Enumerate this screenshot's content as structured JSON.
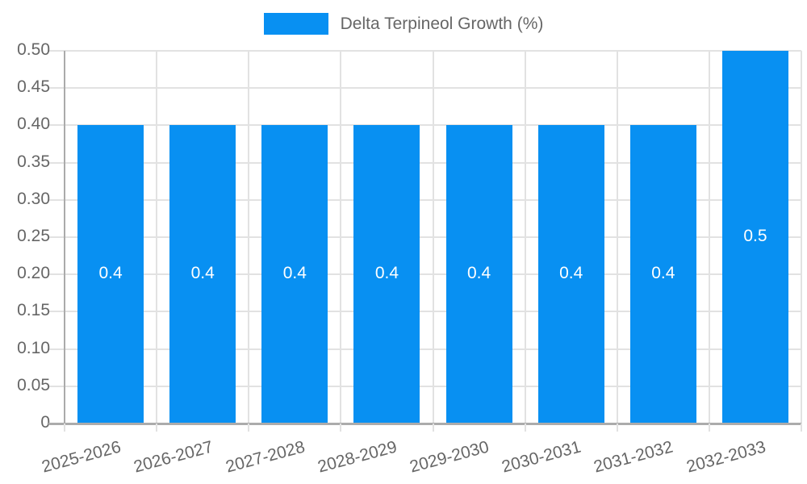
{
  "legend": {
    "series_label": "Delta Terpineol Growth (%)"
  },
  "chart_data": {
    "type": "bar",
    "title": "",
    "series": [
      {
        "name": "Delta Terpineol Growth (%)",
        "values": [
          0.4,
          0.4,
          0.4,
          0.4,
          0.4,
          0.4,
          0.4,
          0.5
        ],
        "bar_labels": [
          "0.4",
          "0.4",
          "0.4",
          "0.4",
          "0.4",
          "0.4",
          "0.4",
          "0.5"
        ]
      }
    ],
    "categories": [
      "2025-2026",
      "2026-2027",
      "2027-2028",
      "2028-2029",
      "2029-2030",
      "2030-2031",
      "2031-2032",
      "2032-2033"
    ],
    "xlabel": "",
    "ylabel": "",
    "ylim": [
      0,
      0.5
    ],
    "ytick_step": 0.05,
    "ytick_labels": [
      "0",
      "0.05",
      "0.10",
      "0.15",
      "0.20",
      "0.25",
      "0.30",
      "0.35",
      "0.40",
      "0.45",
      "0.50"
    ],
    "grid": true,
    "legend_position": "top-center",
    "x_label_rotation_deg": -15,
    "colors": {
      "bar": "#0890f2",
      "grid": "#e2e2e2",
      "axis": "#ababab",
      "tick_text": "#666666",
      "bar_label_text": "#ffffff",
      "background": "#ffffff"
    }
  }
}
